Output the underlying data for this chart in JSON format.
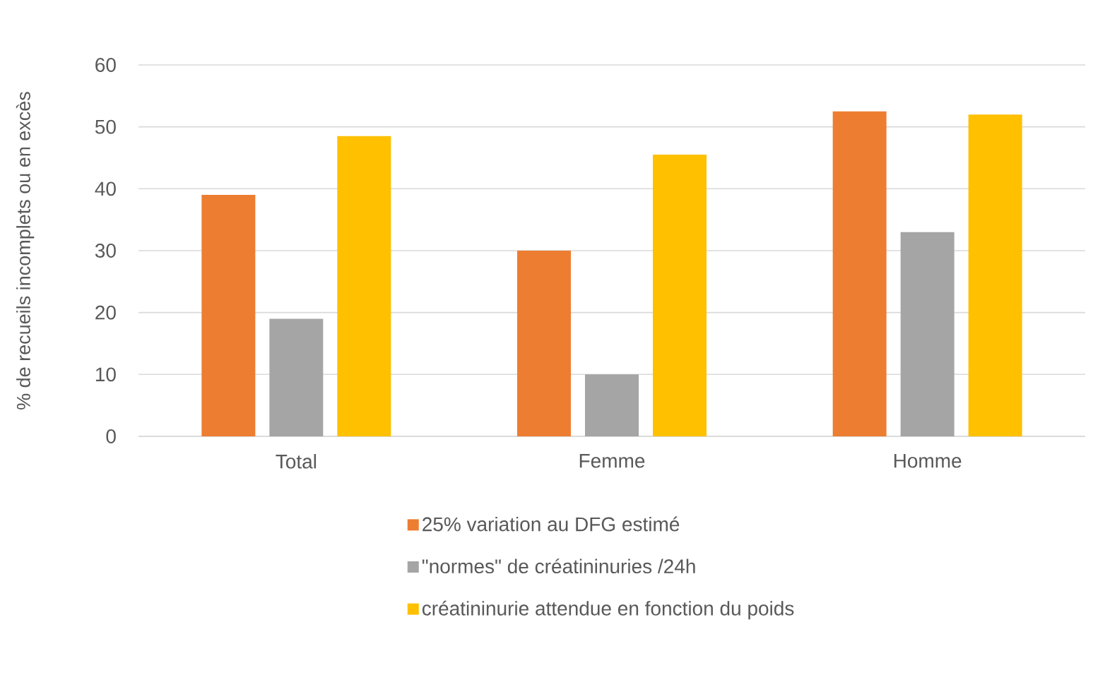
{
  "chart_data": {
    "type": "bar",
    "ylabel": "% de recueils incomplets ou en excès",
    "categories": [
      "Total",
      "Femme",
      "Homme"
    ],
    "series": [
      {
        "name": "25% variation au DFG estimé",
        "color": "#ed7d31",
        "values": [
          39,
          30,
          52.5
        ]
      },
      {
        "name": "\"normes\" de créatininuries /24h",
        "color": "#a5a5a5",
        "values": [
          19,
          10,
          33
        ]
      },
      {
        "name": "créatininurie attendue en fonction du poids",
        "color": "#ffc000",
        "values": [
          48.5,
          45.5,
          52
        ]
      }
    ],
    "ylim": [
      0,
      60
    ],
    "yticks": [
      0,
      10,
      20,
      30,
      40,
      50,
      60
    ],
    "grid": "y",
    "legend": "bottom"
  }
}
